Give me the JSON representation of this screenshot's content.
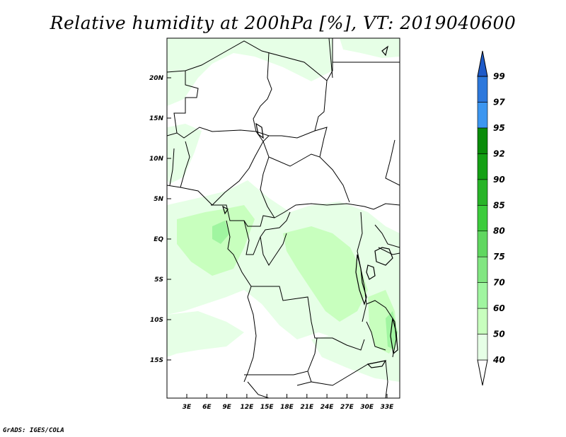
{
  "title": "Relative humidity at 200hPa [%], VT: 2019040600",
  "credit": "GrADS: IGES/COLA",
  "map": {
    "lat_labels": [
      "20N",
      "15N",
      "10N",
      "5N",
      "EQ",
      "5S",
      "10S",
      "15S"
    ],
    "lon_labels": [
      "3E",
      "6E",
      "9E",
      "12E",
      "15E",
      "18E",
      "21E",
      "24E",
      "27E",
      "30E",
      "33E"
    ]
  },
  "colorbar": {
    "levels": [
      "40",
      "50",
      "60",
      "70",
      "75",
      "80",
      "85",
      "90",
      "92",
      "95",
      "97",
      "99"
    ],
    "colors": [
      "#ffffff",
      "#e6ffe6",
      "#c8ffbe",
      "#a0f5a0",
      "#82e682",
      "#60d760",
      "#3ccc3c",
      "#28b428",
      "#14a014",
      "#0a8c0a",
      "#3c96f0",
      "#2d78dc",
      "#1e5ac8"
    ]
  }
}
